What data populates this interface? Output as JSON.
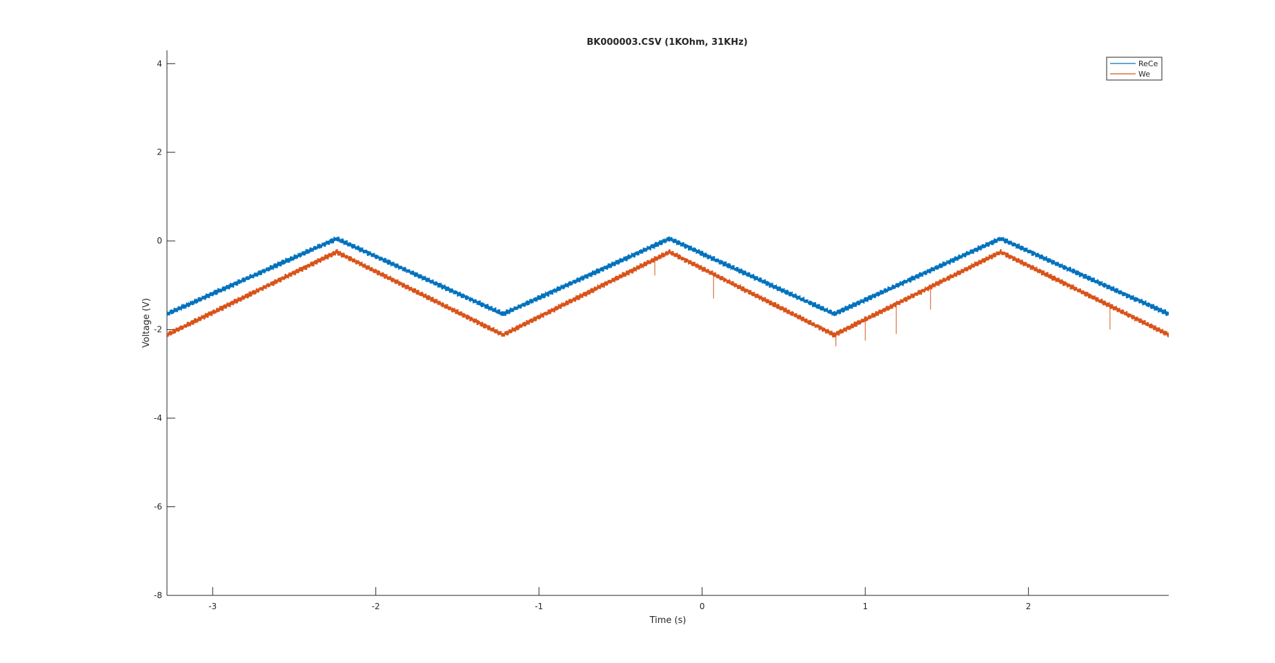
{
  "chart_data": {
    "type": "line",
    "title": "BK000003.CSV (1KOhm, 31KHz)",
    "xlabel": "Time (s)",
    "ylabel": "Voltage (V)",
    "xlim": [
      -3.28,
      2.86
    ],
    "ylim": [
      -8,
      4.3
    ],
    "x_ticks": [
      "-3",
      "-2",
      "-1",
      "0",
      "1",
      "2"
    ],
    "y_ticks": [
      "4",
      "2",
      "0",
      "-2",
      "-4",
      "-6",
      "-8"
    ],
    "legend_position": "top-right",
    "grid": false,
    "series": [
      {
        "name": "ReCe",
        "color": "#0072BD",
        "x": [
          -3.28,
          -2.24,
          -1.22,
          -0.2,
          0.81,
          1.83,
          2.86
        ],
        "y": [
          -1.65,
          0.05,
          -1.65,
          0.05,
          -1.65,
          0.05,
          -1.65
        ]
      },
      {
        "name": "We",
        "color": "#D95319",
        "x": [
          -3.28,
          -2.24,
          -1.22,
          -0.2,
          0.81,
          1.83,
          2.86
        ],
        "y": [
          -2.12,
          -0.25,
          -2.12,
          -0.25,
          -2.12,
          -0.25,
          -2.12
        ],
        "spikes": [
          {
            "x": 0.07,
            "y": -1.3
          },
          {
            "x": 0.82,
            "y": -2.38
          },
          {
            "x": 1.0,
            "y": -2.25
          },
          {
            "x": 1.19,
            "y": -2.1
          },
          {
            "x": 1.4,
            "y": -1.55
          },
          {
            "x": 2.5,
            "y": -2.0
          },
          {
            "x": -0.29,
            "y": -0.78
          },
          {
            "x": -1.35,
            "y": -1.95
          }
        ]
      }
    ]
  }
}
